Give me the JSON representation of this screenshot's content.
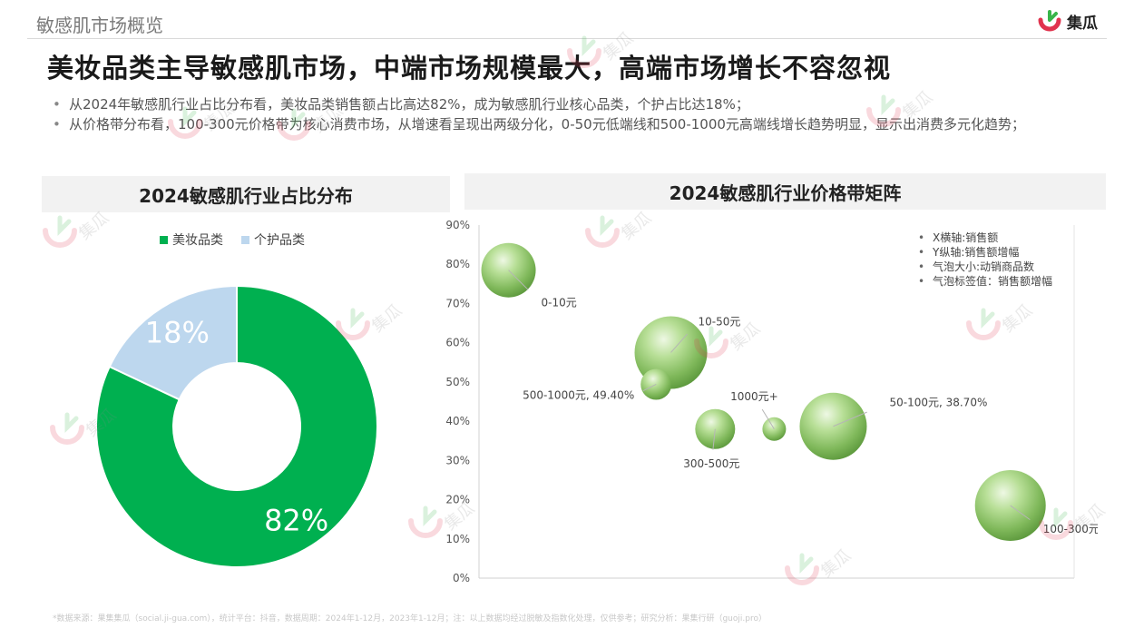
{
  "header": {
    "title": "敏感肌市场概览",
    "logo_text": "集瓜"
  },
  "headline": "美妆品类主导敏感肌市场，中端市场规模最大，高端市场增长不容忽视",
  "bullets": [
    "从2024年敏感肌行业占比分布看，美妆品类销售额占比高达82%，成为敏感肌行业核心品类，个护占比达18%；",
    "从价格带分布看，100-300元价格带为核心消费市场，从增速看呈现出两级分化，0-50元低端线和500-1000元高端线增长趋势明显，显示出消费多元化趋势；"
  ],
  "watermark_text": "集瓜",
  "source": "*数据来源：果集集瓜（social.ji-gua.com），统计平台：抖音，数据周期：2024年1-12月，2023年1-12月；注：以上数据均经过脱敏及指数化处理，仅供参考；研究分析：果集行研（guoji.pro）",
  "chart_data": [
    {
      "type": "pie",
      "title": "2024敏感肌行业占比分布",
      "donut": true,
      "legend_position": "top",
      "categories": [
        "美妆品类",
        "个护品类"
      ],
      "values": [
        82,
        18
      ],
      "labels": [
        "82%",
        "18%"
      ],
      "colors": [
        "#00b050",
        "#bdd7ee"
      ]
    },
    {
      "type": "scatter",
      "title": "2024敏感肌行业价格带矩阵",
      "ylim": [
        0,
        0.9
      ],
      "yticks": [
        "0%",
        "10%",
        "20%",
        "30%",
        "40%",
        "50%",
        "60%",
        "70%",
        "80%",
        "90%"
      ],
      "x_labeled": false,
      "grid": false,
      "notes": [
        "X横轴:销售额",
        "Y纵轴:销售额增幅",
        "气泡大小:动销商品数",
        "气泡标签值：销售额增幅"
      ],
      "bubble_color": "#9fce7a",
      "points": [
        {
          "label": "0-10元",
          "x": 1.0,
          "y": 0.785,
          "size": 30
        },
        {
          "label": "10-50元",
          "x": 6.5,
          "y": 0.575,
          "size": 40
        },
        {
          "label": "500-1000元, 49.40%",
          "x": 6.0,
          "y": 0.494,
          "size": 17
        },
        {
          "label": "1000元+",
          "x": 10.0,
          "y": 0.38,
          "size": 13
        },
        {
          "label": "50-100元, 38.70%",
          "x": 12.0,
          "y": 0.387,
          "size": 37
        },
        {
          "label": "300-500元",
          "x": 8.0,
          "y": 0.38,
          "size": 22
        },
        {
          "label": "100-300元",
          "x": 18.0,
          "y": 0.185,
          "size": 39
        }
      ]
    }
  ]
}
